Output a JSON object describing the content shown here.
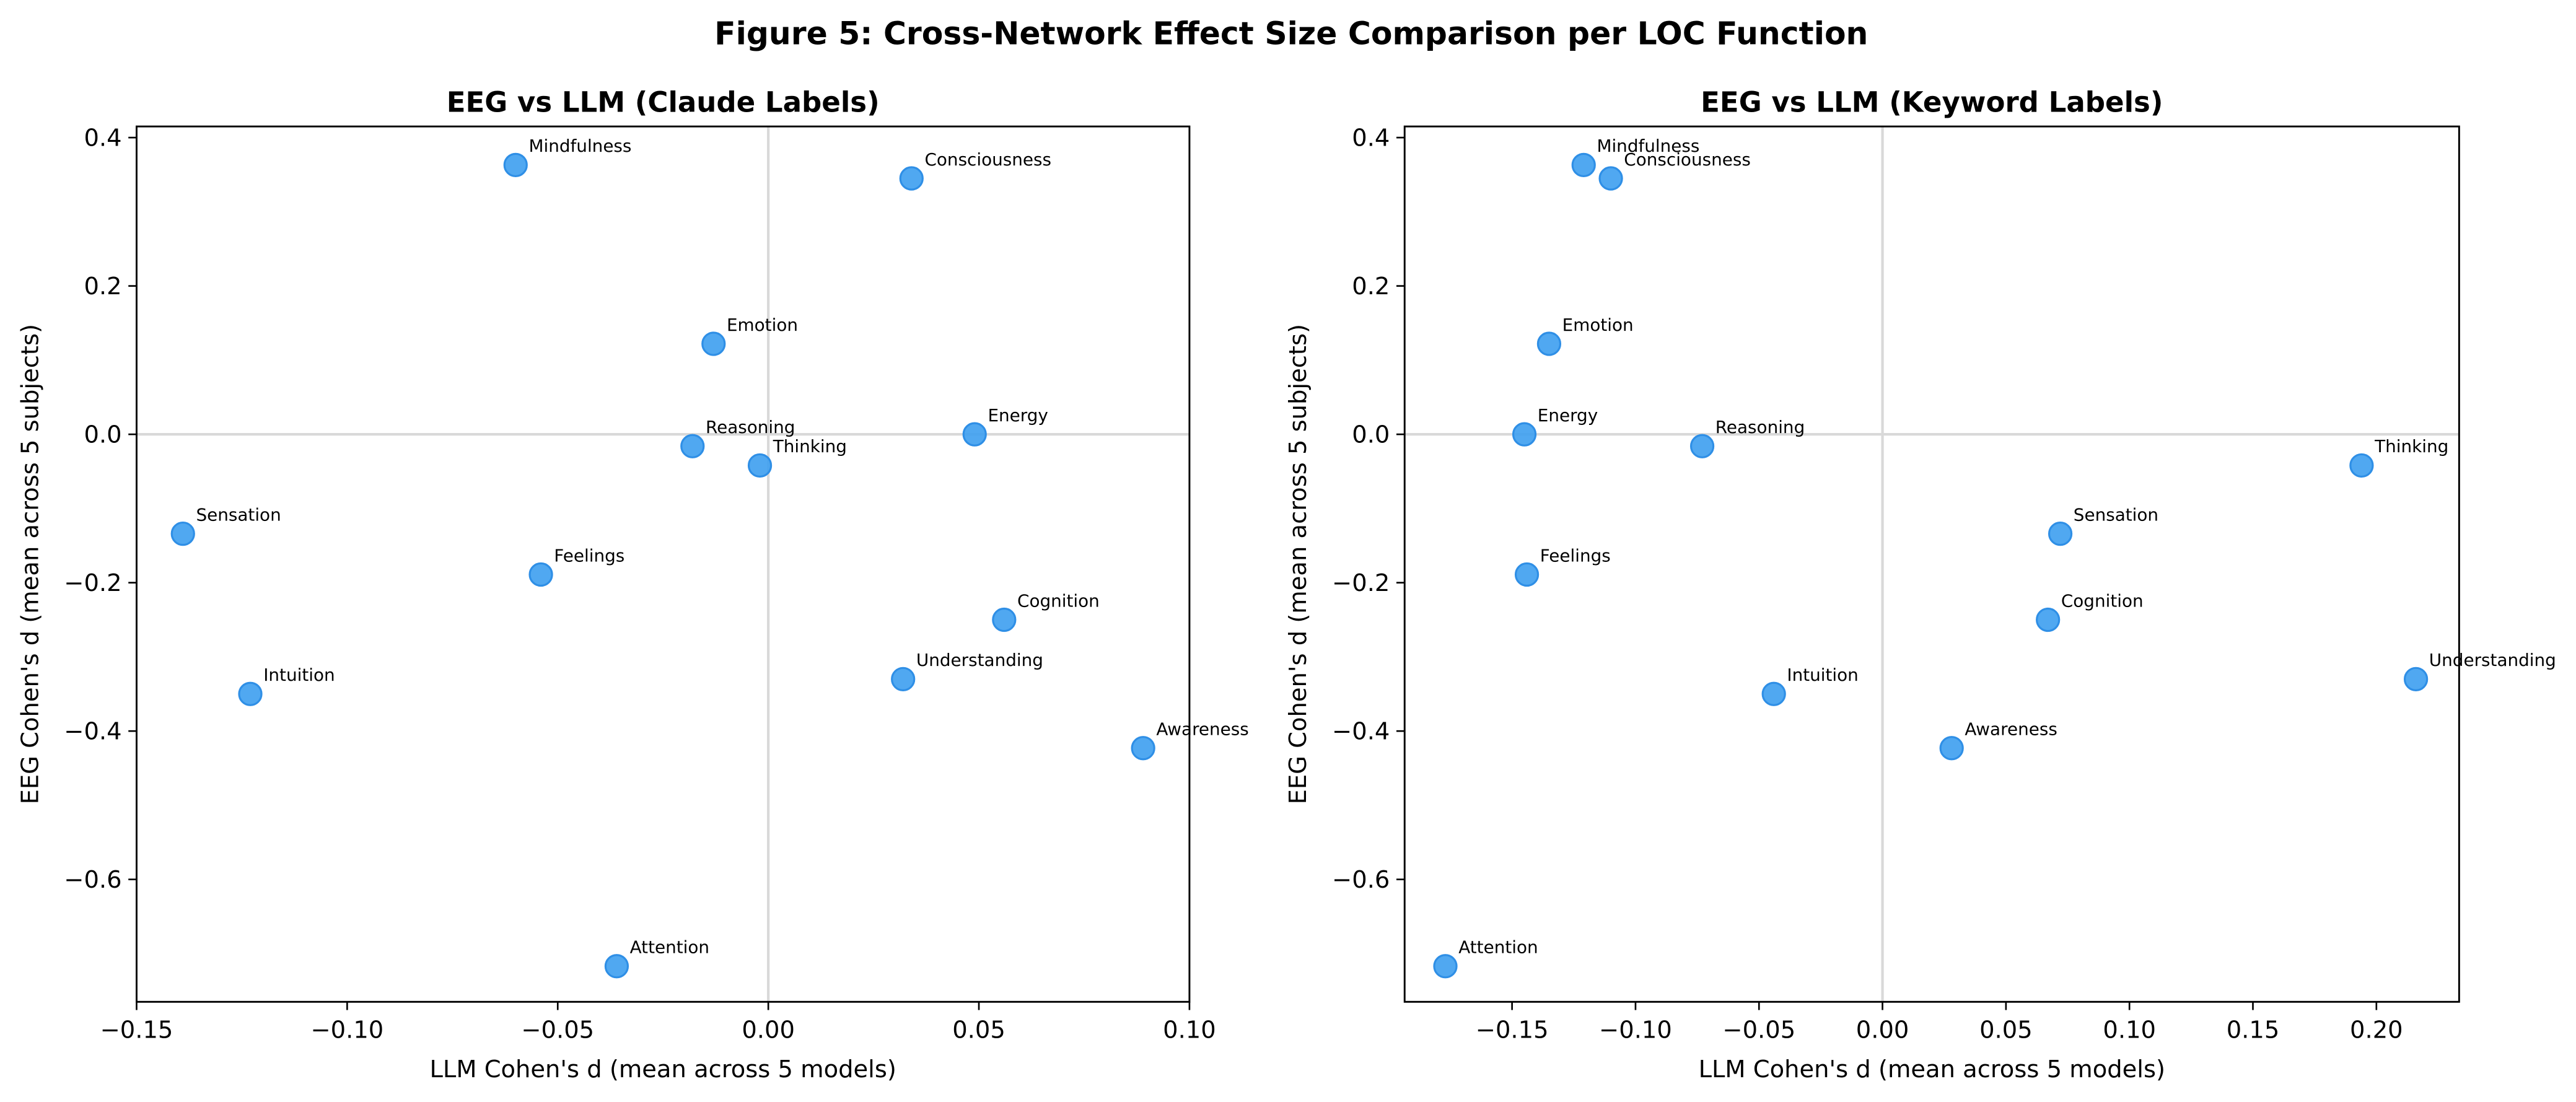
{
  "figure_title": "Figure 5: Cross-Network Effect Size Comparison per LOC Function",
  "colors": {
    "point": "#3d9ff0",
    "point_edge": "#2f8fe6",
    "zero_line": "#d9d9d9"
  },
  "chart_data": [
    {
      "type": "scatter",
      "title": "EEG vs LLM (Claude Labels)",
      "xlabel": "LLM Cohen's d (mean across 5 models)",
      "ylabel": "EEG Cohen's d (mean across 5 subjects)",
      "xlim": [
        -0.15,
        0.1
      ],
      "ylim": [
        -0.765,
        0.415
      ],
      "xticks": [
        -0.15,
        -0.1,
        -0.05,
        0.0,
        0.05,
        0.1
      ],
      "xtick_labels": [
        "−0.15",
        "−0.10",
        "−0.05",
        "0.00",
        "0.05",
        "0.10"
      ],
      "yticks": [
        0.4,
        0.2,
        0.0,
        -0.2,
        -0.4,
        -0.6
      ],
      "ytick_labels": [
        "0.4",
        "0.2",
        "0.0",
        "−0.2",
        "−0.4",
        "−0.6"
      ],
      "reference_lines": {
        "x": 0,
        "y": 0
      },
      "grid": false,
      "points": [
        {
          "label": "Mindfulness",
          "x": -0.06,
          "y": 0.363
        },
        {
          "label": "Consciousness",
          "x": 0.034,
          "y": 0.345
        },
        {
          "label": "Emotion",
          "x": -0.013,
          "y": 0.122
        },
        {
          "label": "Reasoning",
          "x": -0.018,
          "y": -0.016
        },
        {
          "label": "Thinking",
          "x": -0.002,
          "y": -0.042
        },
        {
          "label": "Energy",
          "x": 0.049,
          "y": 0.0
        },
        {
          "label": "Sensation",
          "x": -0.139,
          "y": -0.134
        },
        {
          "label": "Feelings",
          "x": -0.054,
          "y": -0.189
        },
        {
          "label": "Intuition",
          "x": -0.123,
          "y": -0.35
        },
        {
          "label": "Cognition",
          "x": 0.056,
          "y": -0.25
        },
        {
          "label": "Understanding",
          "x": 0.032,
          "y": -0.33
        },
        {
          "label": "Awareness",
          "x": 0.089,
          "y": -0.423
        },
        {
          "label": "Attention",
          "x": -0.036,
          "y": -0.717
        }
      ]
    },
    {
      "type": "scatter",
      "title": "EEG vs LLM (Keyword Labels)",
      "xlabel": "LLM Cohen's d (mean across 5 models)",
      "ylabel": "EEG Cohen's d (mean across 5 subjects)",
      "xlim": [
        -0.1935,
        0.2335
      ],
      "ylim": [
        -0.765,
        0.415
      ],
      "xticks": [
        -0.15,
        -0.1,
        -0.05,
        0.0,
        0.05,
        0.1,
        0.15,
        0.2
      ],
      "xtick_labels": [
        "−0.15",
        "−0.10",
        "−0.05",
        "0.00",
        "0.05",
        "0.10",
        "0.15",
        "0.20"
      ],
      "yticks": [
        0.4,
        0.2,
        0.0,
        -0.2,
        -0.4,
        -0.6
      ],
      "ytick_labels": [
        "0.4",
        "0.2",
        "0.0",
        "−0.2",
        "−0.4",
        "−0.6"
      ],
      "reference_lines": {
        "x": 0,
        "y": 0
      },
      "grid": false,
      "points": [
        {
          "label": "Mindfulness",
          "x": -0.121,
          "y": 0.363
        },
        {
          "label": "Consciousness",
          "x": -0.11,
          "y": 0.345
        },
        {
          "label": "Emotion",
          "x": -0.135,
          "y": 0.122
        },
        {
          "label": "Energy",
          "x": -0.145,
          "y": 0.0
        },
        {
          "label": "Reasoning",
          "x": -0.073,
          "y": -0.016
        },
        {
          "label": "Thinking",
          "x": 0.194,
          "y": -0.042
        },
        {
          "label": "Sensation",
          "x": 0.072,
          "y": -0.134
        },
        {
          "label": "Feelings",
          "x": -0.144,
          "y": -0.189
        },
        {
          "label": "Cognition",
          "x": 0.067,
          "y": -0.25
        },
        {
          "label": "Intuition",
          "x": -0.044,
          "y": -0.35
        },
        {
          "label": "Understanding",
          "x": 0.216,
          "y": -0.33
        },
        {
          "label": "Awareness",
          "x": 0.028,
          "y": -0.423
        },
        {
          "label": "Attention",
          "x": -0.177,
          "y": -0.717
        }
      ]
    }
  ]
}
